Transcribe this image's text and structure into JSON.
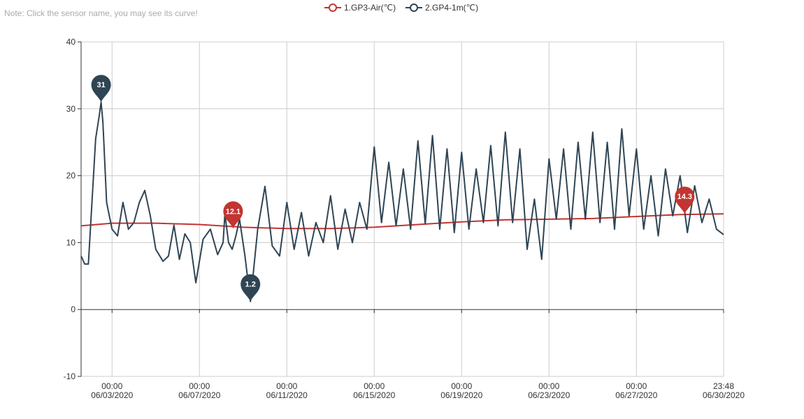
{
  "note": "Note: Click the sensor name, you may see its curve!",
  "legend": [
    {
      "name": "1.GP3-Air(℃)",
      "color": "#c23531"
    },
    {
      "name": "2.GP4-1m(℃)",
      "color": "#2f4554"
    }
  ],
  "chart_data": {
    "type": "line",
    "x_range": [
      "2020-06-01 14:00",
      "2020-06-30 23:48"
    ],
    "ylim": [
      -10,
      40
    ],
    "y_ticks": [
      -10,
      0,
      10,
      20,
      30,
      40
    ],
    "x_ticks": [
      {
        "time": "00:00",
        "date": "06/03/2020",
        "x": "2020-06-03 00:00"
      },
      {
        "time": "00:00",
        "date": "06/07/2020",
        "x": "2020-06-07 00:00"
      },
      {
        "time": "00:00",
        "date": "06/11/2020",
        "x": "2020-06-11 00:00"
      },
      {
        "time": "00:00",
        "date": "06/15/2020",
        "x": "2020-06-15 00:00"
      },
      {
        "time": "00:00",
        "date": "06/19/2020",
        "x": "2020-06-19 00:00"
      },
      {
        "time": "00:00",
        "date": "06/23/2020",
        "x": "2020-06-23 00:00"
      },
      {
        "time": "00:00",
        "date": "06/27/2020",
        "x": "2020-06-27 00:00"
      },
      {
        "time": "23:48",
        "date": "06/30/2020",
        "x": "2020-06-30 23:48"
      }
    ],
    "grid": true,
    "series": [
      {
        "name": "1.GP3-Air(℃)",
        "color": "#c23531",
        "x": [
          "2020-06-01 14:00",
          "2020-06-03 00:00",
          "2020-06-05 00:00",
          "2020-06-07 00:00",
          "2020-06-09 00:00",
          "2020-06-11 00:00",
          "2020-06-13 00:00",
          "2020-06-15 00:00",
          "2020-06-17 00:00",
          "2020-06-19 00:00",
          "2020-06-21 00:00",
          "2020-06-23 00:00",
          "2020-06-25 00:00",
          "2020-06-27 00:00",
          "2020-06-29 00:00",
          "2020-06-30 23:48"
        ],
        "values": [
          12.5,
          12.9,
          12.9,
          12.7,
          12.3,
          12.1,
          12.1,
          12.3,
          12.7,
          13.1,
          13.4,
          13.5,
          13.6,
          13.9,
          14.2,
          14.3
        ],
        "markers": [
          {
            "label": "12.1",
            "x": "2020-06-08 13:00",
            "y": 12.1
          },
          {
            "label": "14.3",
            "x": "2020-06-29 05:00",
            "y": 14.3
          }
        ]
      },
      {
        "name": "2.GP4-1m(℃)",
        "color": "#2f4554",
        "x": [
          "2020-06-01 14:00",
          "2020-06-01 18:00",
          "2020-06-01 22:00",
          "2020-06-02 06:00",
          "2020-06-02 10:00",
          "2020-06-02 12:00",
          "2020-06-02 14:00",
          "2020-06-02 18:00",
          "2020-06-03 00:00",
          "2020-06-03 06:00",
          "2020-06-03 12:00",
          "2020-06-03 18:00",
          "2020-06-04 00:00",
          "2020-06-04 06:00",
          "2020-06-04 12:00",
          "2020-06-04 18:00",
          "2020-06-05 00:00",
          "2020-06-05 08:00",
          "2020-06-05 14:00",
          "2020-06-05 20:00",
          "2020-06-06 02:00",
          "2020-06-06 08:00",
          "2020-06-06 14:00",
          "2020-06-06 20:00",
          "2020-06-07 04:00",
          "2020-06-07 12:00",
          "2020-06-07 20:00",
          "2020-06-08 02:00",
          "2020-06-08 04:00",
          "2020-06-08 08:00",
          "2020-06-08 12:00",
          "2020-06-08 16:00",
          "2020-06-08 20:00",
          "2020-06-09 02:00",
          "2020-06-09 08:00",
          "2020-06-09 16:00",
          "2020-06-10 00:00",
          "2020-06-10 08:00",
          "2020-06-10 16:00",
          "2020-06-11 00:00",
          "2020-06-11 08:00",
          "2020-06-11 16:00",
          "2020-06-12 00:00",
          "2020-06-12 08:00",
          "2020-06-12 16:00",
          "2020-06-13 00:00",
          "2020-06-13 08:00",
          "2020-06-13 16:00",
          "2020-06-14 00:00",
          "2020-06-14 08:00",
          "2020-06-14 16:00",
          "2020-06-15 00:00",
          "2020-06-15 08:00",
          "2020-06-15 16:00",
          "2020-06-16 00:00",
          "2020-06-16 08:00",
          "2020-06-16 16:00",
          "2020-06-17 00:00",
          "2020-06-17 08:00",
          "2020-06-17 16:00",
          "2020-06-18 00:00",
          "2020-06-18 08:00",
          "2020-06-18 16:00",
          "2020-06-19 00:00",
          "2020-06-19 08:00",
          "2020-06-19 16:00",
          "2020-06-20 00:00",
          "2020-06-20 08:00",
          "2020-06-20 16:00",
          "2020-06-21 00:00",
          "2020-06-21 08:00",
          "2020-06-21 16:00",
          "2020-06-22 00:00",
          "2020-06-22 08:00",
          "2020-06-22 16:00",
          "2020-06-23 00:00",
          "2020-06-23 08:00",
          "2020-06-23 16:00",
          "2020-06-24 00:00",
          "2020-06-24 08:00",
          "2020-06-24 16:00",
          "2020-06-25 00:00",
          "2020-06-25 08:00",
          "2020-06-25 16:00",
          "2020-06-26 00:00",
          "2020-06-26 08:00",
          "2020-06-26 16:00",
          "2020-06-27 00:00",
          "2020-06-27 08:00",
          "2020-06-27 16:00",
          "2020-06-28 00:00",
          "2020-06-28 08:00",
          "2020-06-28 16:00",
          "2020-06-29 00:00",
          "2020-06-29 08:00",
          "2020-06-29 16:00",
          "2020-06-30 00:00",
          "2020-06-30 08:00",
          "2020-06-30 16:00",
          "2020-06-30 23:48"
        ],
        "values": [
          8.0,
          6.8,
          6.8,
          25.5,
          29.0,
          31.0,
          28.0,
          16.0,
          12.0,
          11.0,
          16.0,
          12.0,
          13.0,
          16.0,
          17.8,
          14.0,
          9.0,
          7.2,
          8.0,
          12.6,
          7.5,
          11.3,
          10.0,
          4.0,
          10.5,
          12.0,
          8.2,
          10.0,
          14.3,
          10.0,
          9.0,
          11.0,
          13.5,
          8.0,
          1.2,
          12.0,
          18.4,
          9.5,
          8.0,
          16.0,
          9.0,
          14.5,
          8.0,
          13.0,
          10.0,
          17.0,
          9.0,
          15.0,
          10.0,
          16.0,
          12.0,
          24.3,
          13.0,
          22.0,
          12.5,
          21.0,
          12.0,
          25.2,
          12.8,
          26.0,
          12.0,
          24.0,
          11.5,
          23.5,
          12.0,
          21.0,
          13.0,
          24.5,
          12.5,
          26.5,
          13.0,
          24.0,
          9.0,
          16.5,
          7.5,
          22.5,
          13.5,
          24.0,
          12.0,
          25.0,
          13.5,
          26.5,
          13.0,
          25.0,
          12.0,
          27.0,
          14.0,
          24.0,
          12.0,
          20.0,
          11.0,
          21.0,
          14.0,
          20.0,
          11.5,
          18.5,
          13.0,
          16.5,
          12.0,
          11.2
        ],
        "markers": [
          {
            "label": "31",
            "x": "2020-06-02 12:00",
            "y": 31.0
          },
          {
            "label": "1.2",
            "x": "2020-06-09 08:00",
            "y": 1.2
          }
        ]
      }
    ]
  }
}
